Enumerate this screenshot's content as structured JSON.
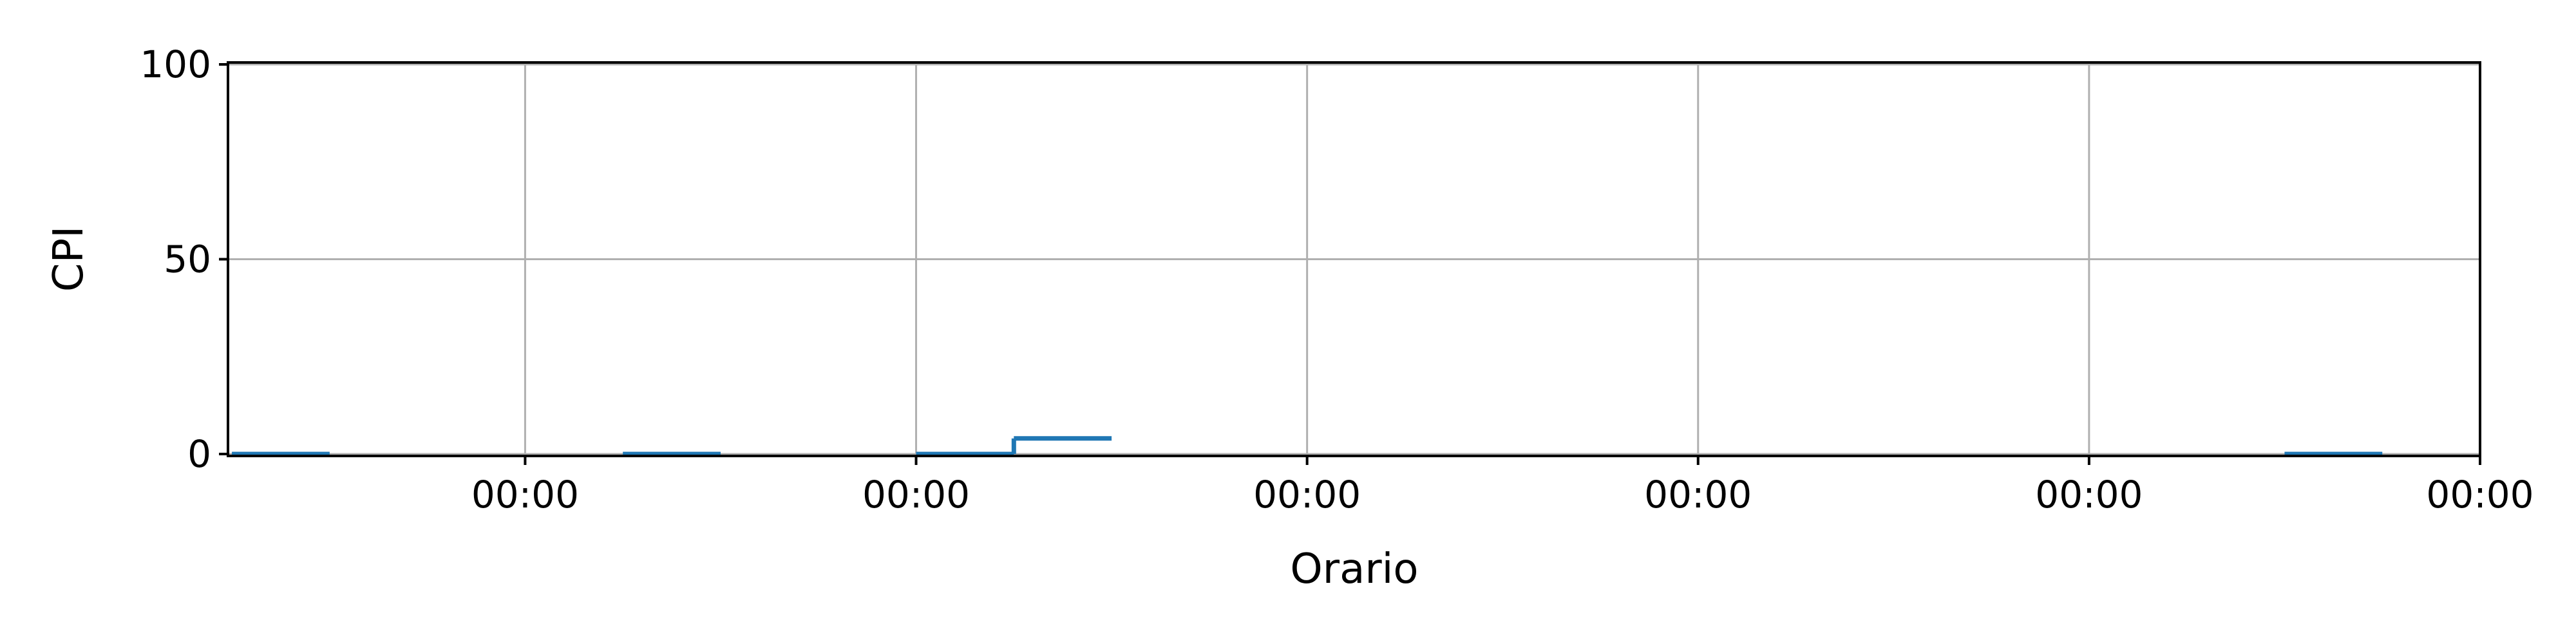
{
  "chart_data": {
    "type": "line",
    "step": true,
    "title": "",
    "xlabel": "Orario",
    "ylabel": "CPI",
    "ylim": [
      0,
      100
    ],
    "y_ticks": [
      0,
      50,
      100
    ],
    "x_tick_labels": [
      "00:00",
      "00:00",
      "00:00",
      "00:00",
      "00:00",
      "00:00"
    ],
    "grid": true,
    "color": "#1f77b4",
    "segments": [
      {
        "x_start": -0.75,
        "x_end": -0.5,
        "y": 0
      },
      {
        "x_start": 0.25,
        "x_end": 0.5,
        "y": 0
      },
      {
        "x_start": 1.0,
        "x_end": 1.25,
        "y": 0
      },
      {
        "x_start": 1.25,
        "x_end": 1.5,
        "y": 4
      },
      {
        "x_start": 4.5,
        "x_end": 4.75,
        "y": 0
      }
    ],
    "xlim": [
      -0.76,
      5.0
    ]
  }
}
